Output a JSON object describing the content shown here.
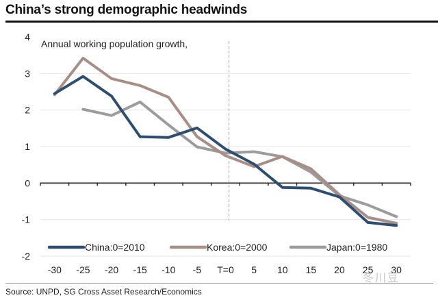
{
  "title": "China’s strong demographic headwinds",
  "source": "Source: UNPD, SG Cross Asset Research/Economics",
  "watermark": "冬川豆",
  "chart_data": {
    "type": "line",
    "title": "China’s strong demographic headwinds",
    "ylabel": "Annual working population growth,",
    "xlabel": "",
    "categories": [
      "-30",
      "-25",
      "-20",
      "-15",
      "-10",
      "-5",
      "T=0",
      "5",
      "10",
      "15",
      "20",
      "25",
      "30"
    ],
    "ylim": [
      -2,
      4
    ],
    "yticks": [
      -2,
      -1,
      0,
      1,
      2,
      3,
      4
    ],
    "grid": true,
    "reference_line": {
      "category": "T=0",
      "style": "dashed"
    },
    "legend_position": "bottom",
    "series": [
      {
        "name": "China:0=2010",
        "color": "#2e4d72",
        "values": [
          2.45,
          2.92,
          2.38,
          1.27,
          1.25,
          1.51,
          0.93,
          0.52,
          -0.12,
          -0.14,
          -0.38,
          -1.08,
          -1.16
        ]
      },
      {
        "name": "Korea:0=2000",
        "color": "#a88e87",
        "values": [
          2.42,
          3.42,
          2.86,
          2.67,
          2.35,
          1.27,
          0.75,
          0.45,
          0.73,
          0.39,
          -0.32,
          -0.94,
          -1.1
        ]
      },
      {
        "name": "Japan:0=1980",
        "color": "#9c9c9c",
        "values": [
          null,
          2.02,
          1.85,
          2.22,
          1.59,
          0.99,
          0.82,
          0.86,
          0.72,
          0.3,
          -0.35,
          -0.6,
          -0.92
        ]
      }
    ]
  }
}
